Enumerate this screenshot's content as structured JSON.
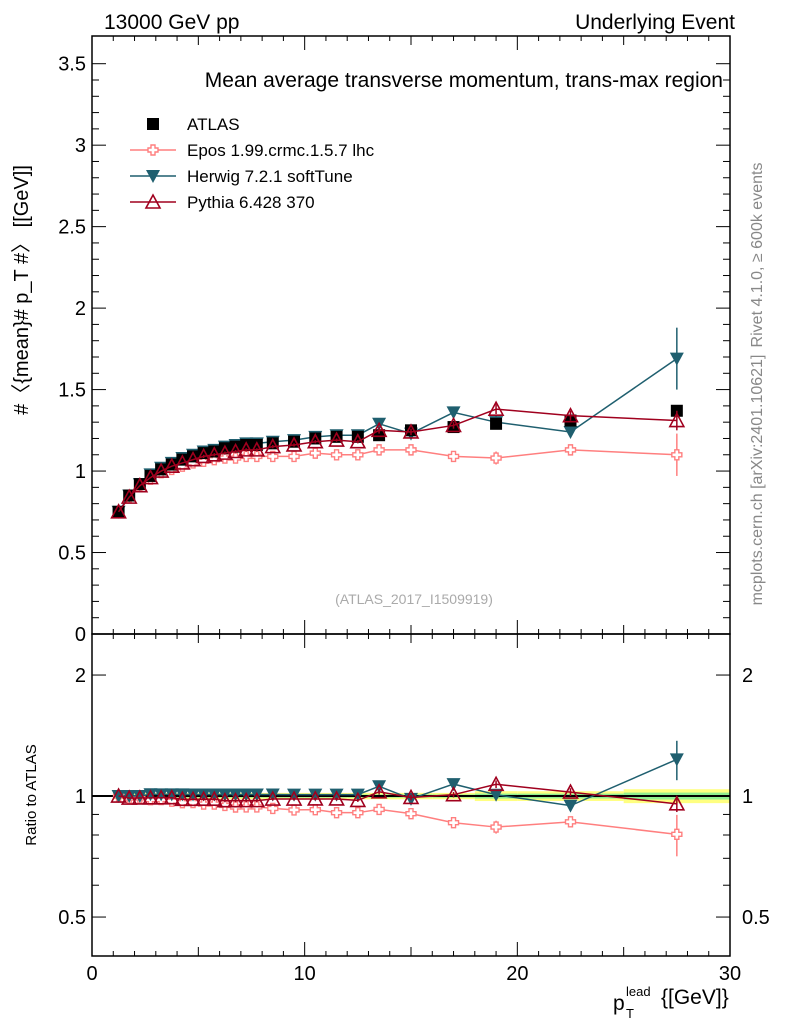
{
  "chart_data": {
    "type": "line",
    "header_left": "13000 GeV pp",
    "header_right": "Underlying Event",
    "title": "Mean average transverse momentum, trans-max region",
    "ylabel": "#〈{mean}# p_T #〉 [[GeV]]",
    "xlabel": "{[GeV]}",
    "xlabel_main": "p",
    "xlabel_sub": "T",
    "xlabel_sup": "lead",
    "ratio_ylabel": "Ratio to ATLAS",
    "analysis_id": "(ATLAS_2017_I1509919)",
    "side_text_1": "Rivet 4.1.0, ≥ 600k events",
    "side_text_2": "mcplots.cern.ch [arXiv:2401.10621]",
    "xlim": [
      0,
      30
    ],
    "ylim": [
      0,
      3.67
    ],
    "ratio_ylim": [
      0.4,
      2.53
    ],
    "ratio_log": true,
    "xticks": [
      "0",
      "10",
      "20",
      "30"
    ],
    "yticks": [
      "0",
      "0.5",
      "1",
      "1.5",
      "2",
      "2.5",
      "3",
      "3.5"
    ],
    "ratio_yticks": [
      "0.5",
      "1",
      "2"
    ],
    "x": [
      1.25,
      1.75,
      2.25,
      2.75,
      3.25,
      3.75,
      4.25,
      4.75,
      5.25,
      5.75,
      6.25,
      6.75,
      7.25,
      7.75,
      8.5,
      9.5,
      10.5,
      11.5,
      12.5,
      13.5,
      15,
      17,
      19,
      22.5,
      27.5
    ],
    "series": [
      {
        "name": "ATLAS",
        "color": "#000000",
        "marker": "square",
        "values": [
          0.75,
          0.85,
          0.92,
          0.97,
          1.01,
          1.04,
          1.07,
          1.09,
          1.11,
          1.12,
          1.14,
          1.15,
          1.16,
          1.16,
          1.17,
          1.18,
          1.2,
          1.21,
          1.21,
          1.22,
          1.25,
          1.27,
          1.29,
          1.31,
          1.37
        ],
        "err": [
          0,
          0,
          0,
          0,
          0,
          0,
          0,
          0,
          0,
          0,
          0,
          0,
          0,
          0,
          0,
          0,
          0,
          0,
          0,
          0.01,
          0.01,
          0.01,
          0.02,
          0.02,
          0.03
        ]
      },
      {
        "name": "Epos 1.99.crmc.1.5.7 lhc",
        "color": "#ff7f7f",
        "marker": "cross",
        "values": [
          0.75,
          0.84,
          0.91,
          0.95,
          0.99,
          1.01,
          1.03,
          1.05,
          1.06,
          1.07,
          1.08,
          1.08,
          1.09,
          1.09,
          1.09,
          1.09,
          1.11,
          1.1,
          1.1,
          1.13,
          1.13,
          1.09,
          1.08,
          1.13,
          1.1
        ],
        "err": [
          0,
          0,
          0,
          0,
          0.01,
          0.01,
          0.01,
          0.01,
          0.01,
          0.01,
          0.01,
          0.01,
          0.01,
          0.01,
          0.01,
          0.01,
          0.01,
          0.01,
          0.01,
          0.02,
          0.02,
          0.02,
          0.04,
          0.03,
          0.13
        ]
      },
      {
        "name": "Herwig 7.2.1 softTune",
        "color": "#1f5f6f",
        "marker": "tri-down",
        "values": [
          0.75,
          0.85,
          0.92,
          0.98,
          1.02,
          1.05,
          1.08,
          1.1,
          1.12,
          1.13,
          1.15,
          1.16,
          1.17,
          1.17,
          1.18,
          1.19,
          1.21,
          1.22,
          1.22,
          1.29,
          1.23,
          1.36,
          1.3,
          1.24,
          1.69
        ],
        "err": [
          0,
          0,
          0,
          0,
          0,
          0,
          0,
          0.01,
          0.01,
          0.01,
          0.01,
          0.01,
          0.01,
          0.01,
          0.01,
          0.01,
          0.01,
          0.01,
          0.01,
          0.02,
          0.02,
          0.02,
          0.04,
          0.03,
          0.19
        ]
      },
      {
        "name": "Pythia 6.428 370",
        "color": "#a0001e",
        "marker": "tri-up-open",
        "values": [
          0.75,
          0.84,
          0.91,
          0.96,
          1.0,
          1.03,
          1.05,
          1.07,
          1.09,
          1.1,
          1.11,
          1.12,
          1.13,
          1.13,
          1.15,
          1.16,
          1.18,
          1.19,
          1.18,
          1.25,
          1.24,
          1.28,
          1.38,
          1.34,
          1.31
        ],
        "err": [
          0,
          0,
          0,
          0,
          0,
          0,
          0,
          0,
          0.01,
          0.01,
          0.01,
          0.01,
          0.01,
          0.01,
          0.01,
          0.01,
          0.01,
          0.01,
          0.01,
          0.02,
          0.02,
          0.02,
          0.03,
          0.03,
          0.06
        ]
      }
    ],
    "legend_placement": "top-left"
  }
}
